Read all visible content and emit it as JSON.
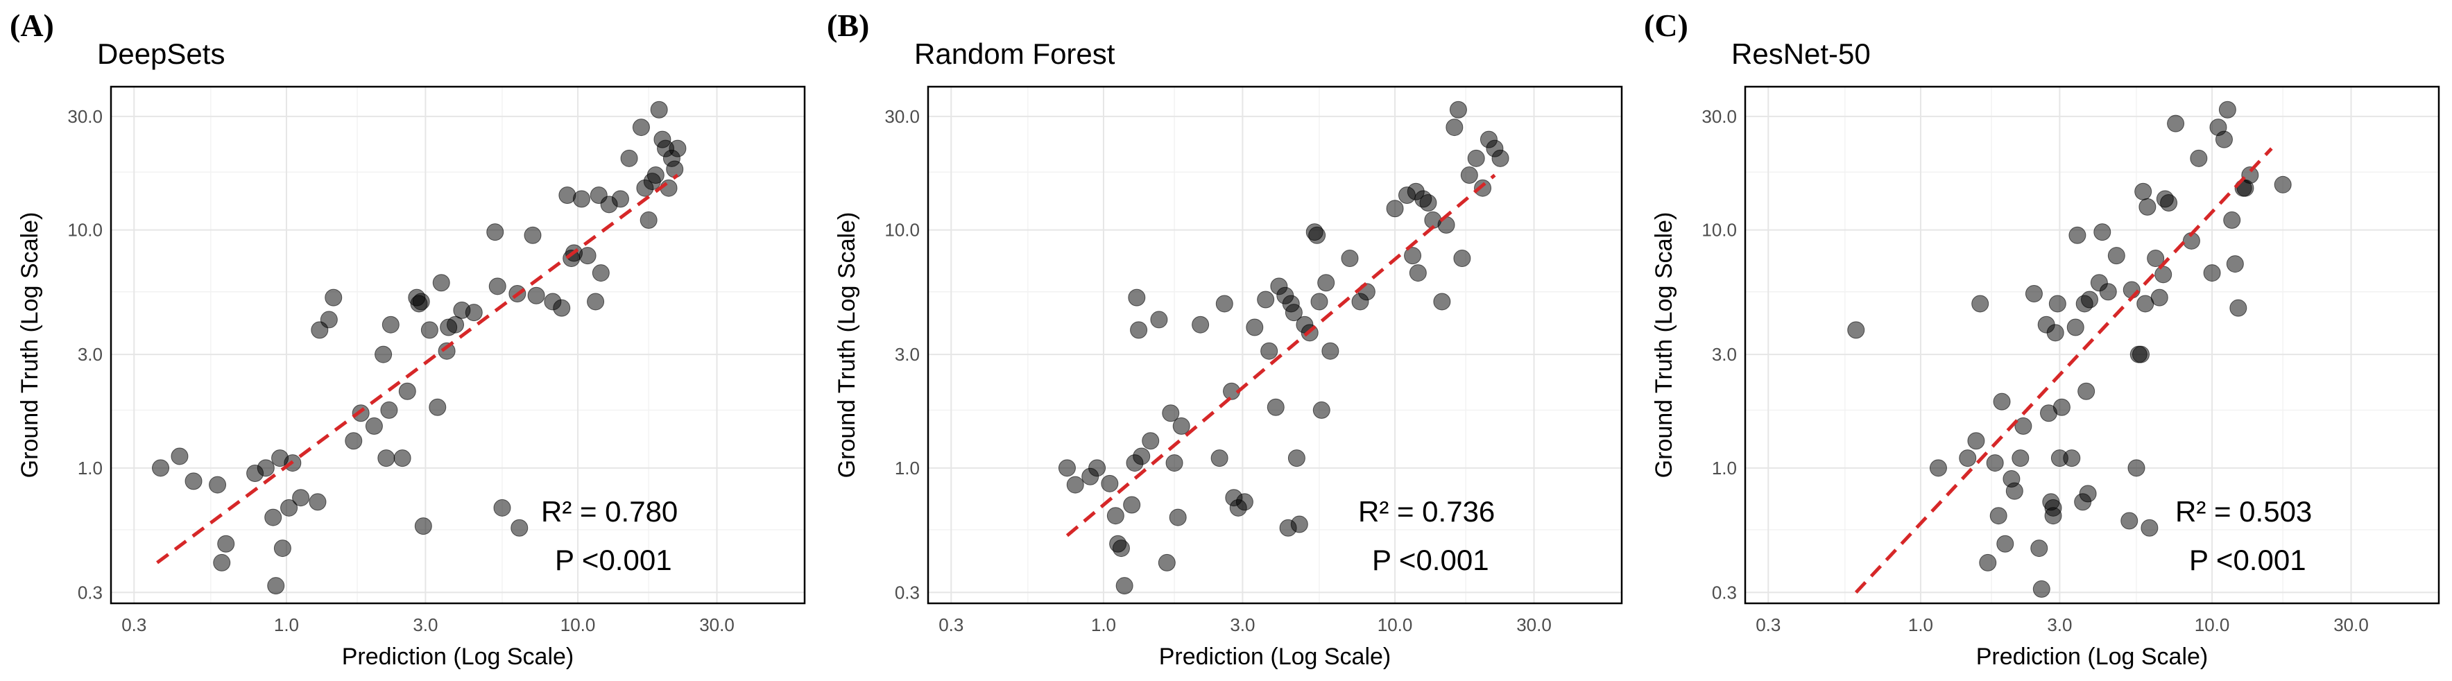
{
  "chart_data": [
    {
      "type": "scatter",
      "panel_label": "(A)",
      "title": "DeepSets",
      "xlabel": "Prediction (Log Scale)",
      "ylabel": "Ground Truth (Log Scale)",
      "xscale": "log",
      "yscale": "log",
      "xlim": [
        0.25,
        60
      ],
      "ylim": [
        0.27,
        40
      ],
      "xticks": [
        "0.3",
        "1.0",
        "3.0",
        "10.0",
        "30.0"
      ],
      "yticks": [
        "0.3",
        "1.0",
        "3.0",
        "10.0",
        "30.0"
      ],
      "grid": true,
      "point_color": "#000000",
      "fit_color": "#d62728",
      "fit_line": [
        [
          0.36,
          0.4
        ],
        [
          22,
          17
        ]
      ],
      "annotations": [
        "R² = 0.780",
        "P  <0.001"
      ],
      "points": [
        [
          0.37,
          1.0
        ],
        [
          0.43,
          1.12
        ],
        [
          0.48,
          0.88
        ],
        [
          0.58,
          0.85
        ],
        [
          0.6,
          0.4
        ],
        [
          0.62,
          0.48
        ],
        [
          0.78,
          0.95
        ],
        [
          0.85,
          1.0
        ],
        [
          0.9,
          0.62
        ],
        [
          0.92,
          0.32
        ],
        [
          0.95,
          1.1
        ],
        [
          0.97,
          0.46
        ],
        [
          1.02,
          0.68
        ],
        [
          1.05,
          1.05
        ],
        [
          1.12,
          0.75
        ],
        [
          1.28,
          0.72
        ],
        [
          1.3,
          3.8
        ],
        [
          1.4,
          4.2
        ],
        [
          1.45,
          5.2
        ],
        [
          1.7,
          1.3
        ],
        [
          1.8,
          1.7
        ],
        [
          2.0,
          1.5
        ],
        [
          2.15,
          3.0
        ],
        [
          2.2,
          1.1
        ],
        [
          2.28,
          4.0
        ],
        [
          2.25,
          1.75
        ],
        [
          2.5,
          1.1
        ],
        [
          2.6,
          2.1
        ],
        [
          2.8,
          5.2
        ],
        [
          2.85,
          4.9
        ],
        [
          2.9,
          5.0
        ],
        [
          2.95,
          0.57
        ],
        [
          3.1,
          3.8
        ],
        [
          3.3,
          1.8
        ],
        [
          3.4,
          6.0
        ],
        [
          3.55,
          3.1
        ],
        [
          3.6,
          3.9
        ],
        [
          3.8,
          4.0
        ],
        [
          4.0,
          4.6
        ],
        [
          4.4,
          4.5
        ],
        [
          5.2,
          9.8
        ],
        [
          5.3,
          5.8
        ],
        [
          5.5,
          0.68
        ],
        [
          6.2,
          5.4
        ],
        [
          6.3,
          0.56
        ],
        [
          7.0,
          9.5
        ],
        [
          7.2,
          5.3
        ],
        [
          8.2,
          5.0
        ],
        [
          8.8,
          4.7
        ],
        [
          9.2,
          14.0
        ],
        [
          9.5,
          7.6
        ],
        [
          9.7,
          8.0
        ],
        [
          10.3,
          13.5
        ],
        [
          10.8,
          7.8
        ],
        [
          11.5,
          5.0
        ],
        [
          11.8,
          14.0
        ],
        [
          12.0,
          6.6
        ],
        [
          12.8,
          12.8
        ],
        [
          14.0,
          13.5
        ],
        [
          15.0,
          20.0
        ],
        [
          16.5,
          27.0
        ],
        [
          17.0,
          15.0
        ],
        [
          17.5,
          11.0
        ],
        [
          18.0,
          16.0
        ],
        [
          18.5,
          17.0
        ],
        [
          19.0,
          32.0
        ],
        [
          19.5,
          24.0
        ],
        [
          20.0,
          22.0
        ],
        [
          21.0,
          20.0
        ],
        [
          22.0,
          22.0
        ],
        [
          21.5,
          18.0
        ],
        [
          20.5,
          15.0
        ]
      ]
    },
    {
      "type": "scatter",
      "panel_label": "(B)",
      "title": "Random Forest",
      "xlabel": "Prediction (Log Scale)",
      "ylabel": "Ground Truth (Log Scale)",
      "xscale": "log",
      "yscale": "log",
      "xlim": [
        0.25,
        60
      ],
      "ylim": [
        0.27,
        40
      ],
      "xticks": [
        "0.3",
        "1.0",
        "3.0",
        "10.0",
        "30.0"
      ],
      "yticks": [
        "0.3",
        "1.0",
        "3.0",
        "10.0",
        "30.0"
      ],
      "grid": true,
      "point_color": "#000000",
      "fit_color": "#d62728",
      "fit_line": [
        [
          0.75,
          0.52
        ],
        [
          22,
          17
        ]
      ],
      "annotations": [
        "R² = 0.736",
        "P  <0.001"
      ],
      "points": [
        [
          0.75,
          1.0
        ],
        [
          0.8,
          0.85
        ],
        [
          0.9,
          0.92
        ],
        [
          0.95,
          1.0
        ],
        [
          1.05,
          0.86
        ],
        [
          1.1,
          0.63
        ],
        [
          1.12,
          0.48
        ],
        [
          1.15,
          0.46
        ],
        [
          1.18,
          0.32
        ],
        [
          1.25,
          0.7
        ],
        [
          1.28,
          1.05
        ],
        [
          1.3,
          5.2
        ],
        [
          1.32,
          3.8
        ],
        [
          1.35,
          1.12
        ],
        [
          1.45,
          1.3
        ],
        [
          1.55,
          4.2
        ],
        [
          1.65,
          0.4
        ],
        [
          1.7,
          1.7
        ],
        [
          1.75,
          1.05
        ],
        [
          1.8,
          0.62
        ],
        [
          1.85,
          1.5
        ],
        [
          2.15,
          4.0
        ],
        [
          2.5,
          1.1
        ],
        [
          2.6,
          4.9
        ],
        [
          2.75,
          2.1
        ],
        [
          2.8,
          0.75
        ],
        [
          2.9,
          0.68
        ],
        [
          3.05,
          0.72
        ],
        [
          3.3,
          3.9
        ],
        [
          3.6,
          5.1
        ],
        [
          3.7,
          3.1
        ],
        [
          3.9,
          1.8
        ],
        [
          4.0,
          5.8
        ],
        [
          4.2,
          5.3
        ],
        [
          4.3,
          0.56
        ],
        [
          4.4,
          4.9
        ],
        [
          4.5,
          4.5
        ],
        [
          4.6,
          1.1
        ],
        [
          4.7,
          0.58
        ],
        [
          4.9,
          4.0
        ],
        [
          5.1,
          3.7
        ],
        [
          5.3,
          9.8
        ],
        [
          5.4,
          9.5
        ],
        [
          5.5,
          5.0
        ],
        [
          5.6,
          1.75
        ],
        [
          5.8,
          6.0
        ],
        [
          6.0,
          3.1
        ],
        [
          7.0,
          7.6
        ],
        [
          7.6,
          5.0
        ],
        [
          8.0,
          5.5
        ],
        [
          10.0,
          12.3
        ],
        [
          11.0,
          14.0
        ],
        [
          11.5,
          7.8
        ],
        [
          11.8,
          14.5
        ],
        [
          12.0,
          6.6
        ],
        [
          12.5,
          13.5
        ],
        [
          13.0,
          13.0
        ],
        [
          13.5,
          11.0
        ],
        [
          14.5,
          5.0
        ],
        [
          15.0,
          10.5
        ],
        [
          16.0,
          27.0
        ],
        [
          16.5,
          32.0
        ],
        [
          17.0,
          7.6
        ],
        [
          18.0,
          17.0
        ],
        [
          19.0,
          20.0
        ],
        [
          20.0,
          15.0
        ],
        [
          21.0,
          24.0
        ],
        [
          22.0,
          22.0
        ],
        [
          23.0,
          20.0
        ]
      ]
    },
    {
      "type": "scatter",
      "panel_label": "(C)",
      "title": "ResNet-50",
      "xlabel": "Prediction (Log Scale)",
      "ylabel": "Ground Truth (Log Scale)",
      "xscale": "log",
      "yscale": "log",
      "xlim": [
        0.25,
        60
      ],
      "ylim": [
        0.27,
        40
      ],
      "xticks": [
        "0.3",
        "1.0",
        "3.0",
        "10.0",
        "30.0"
      ],
      "yticks": [
        "0.3",
        "1.0",
        "3.0",
        "10.0",
        "30.0"
      ],
      "grid": true,
      "point_color": "#000000",
      "fit_color": "#d62728",
      "fit_line": [
        [
          0.6,
          0.3
        ],
        [
          16,
          22
        ]
      ],
      "annotations": [
        "R² = 0.503",
        "P  <0.001"
      ],
      "points": [
        [
          0.6,
          3.8
        ],
        [
          1.15,
          1.0
        ],
        [
          1.45,
          1.1
        ],
        [
          1.55,
          1.3
        ],
        [
          1.6,
          4.9
        ],
        [
          1.7,
          0.4
        ],
        [
          1.8,
          1.05
        ],
        [
          1.85,
          0.63
        ],
        [
          1.9,
          1.9
        ],
        [
          1.95,
          0.48
        ],
        [
          2.05,
          0.9
        ],
        [
          2.1,
          0.8
        ],
        [
          2.2,
          1.1
        ],
        [
          2.25,
          1.5
        ],
        [
          2.45,
          5.4
        ],
        [
          2.55,
          0.46
        ],
        [
          2.6,
          0.31
        ],
        [
          2.7,
          4.0
        ],
        [
          2.75,
          1.7
        ],
        [
          2.8,
          0.72
        ],
        [
          2.85,
          0.63
        ],
        [
          2.85,
          0.68
        ],
        [
          2.9,
          3.7
        ],
        [
          2.95,
          4.9
        ],
        [
          3.0,
          1.1
        ],
        [
          3.05,
          1.8
        ],
        [
          3.3,
          1.1
        ],
        [
          3.4,
          3.9
        ],
        [
          3.45,
          9.5
        ],
        [
          3.6,
          0.72
        ],
        [
          3.65,
          4.9
        ],
        [
          3.7,
          2.1
        ],
        [
          3.75,
          0.78
        ],
        [
          3.8,
          5.1
        ],
        [
          4.1,
          6.0
        ],
        [
          4.2,
          9.8
        ],
        [
          4.4,
          5.5
        ],
        [
          4.7,
          7.8
        ],
        [
          5.2,
          0.6
        ],
        [
          5.3,
          5.6
        ],
        [
          5.5,
          1.0
        ],
        [
          5.6,
          3.0
        ],
        [
          5.7,
          3.0
        ],
        [
          5.8,
          14.5
        ],
        [
          5.9,
          4.9
        ],
        [
          6.0,
          12.5
        ],
        [
          6.1,
          0.56
        ],
        [
          6.4,
          7.6
        ],
        [
          6.6,
          5.2
        ],
        [
          6.8,
          6.5
        ],
        [
          6.9,
          13.5
        ],
        [
          7.1,
          13.0
        ],
        [
          7.5,
          28.0
        ],
        [
          8.5,
          9.0
        ],
        [
          9.0,
          20.0
        ],
        [
          10.0,
          6.6
        ],
        [
          10.5,
          27.0
        ],
        [
          11.0,
          24.0
        ],
        [
          11.3,
          32.0
        ],
        [
          11.7,
          11.0
        ],
        [
          12.0,
          7.2
        ],
        [
          12.3,
          4.7
        ],
        [
          12.8,
          15.0
        ],
        [
          13.0,
          15.0
        ],
        [
          13.5,
          17.0
        ],
        [
          17.5,
          15.5
        ]
      ]
    }
  ]
}
